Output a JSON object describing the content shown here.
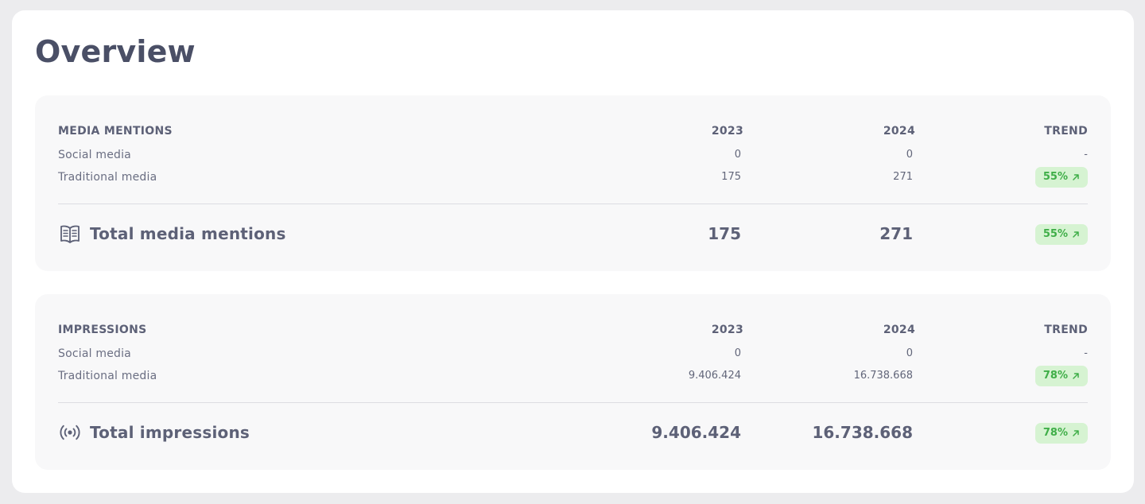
{
  "page": {
    "title": "Overview"
  },
  "colors": {
    "trend_badge_bg": "#d6f3d2",
    "trend_badge_text": "#3fae48",
    "heading": "#4a4f66"
  },
  "sections": [
    {
      "header": "MEDIA MENTIONS",
      "col_2023": "2023",
      "col_2024": "2024",
      "col_trend": "TREND",
      "rows": [
        {
          "label": "Social media",
          "v2023": "0",
          "v2024": "0",
          "trend": "-"
        },
        {
          "label": "Traditional media",
          "v2023": "175",
          "v2024": "271",
          "trend": "55%"
        }
      ],
      "total": {
        "label": "Total media mentions",
        "icon": "book-open-icon",
        "v2023": "175",
        "v2024": "271",
        "trend": "55%"
      }
    },
    {
      "header": "IMPRESSIONS",
      "col_2023": "2023",
      "col_2024": "2024",
      "col_trend": "TREND",
      "rows": [
        {
          "label": "Social media",
          "v2023": "0",
          "v2024": "0",
          "trend": "-"
        },
        {
          "label": "Traditional media",
          "v2023": "9.406.424",
          "v2024": "16.738.668",
          "trend": "78%"
        }
      ],
      "total": {
        "label": "Total impressions",
        "icon": "broadcast-icon",
        "v2023": "9.406.424",
        "v2024": "16.738.668",
        "trend": "78%"
      }
    }
  ]
}
